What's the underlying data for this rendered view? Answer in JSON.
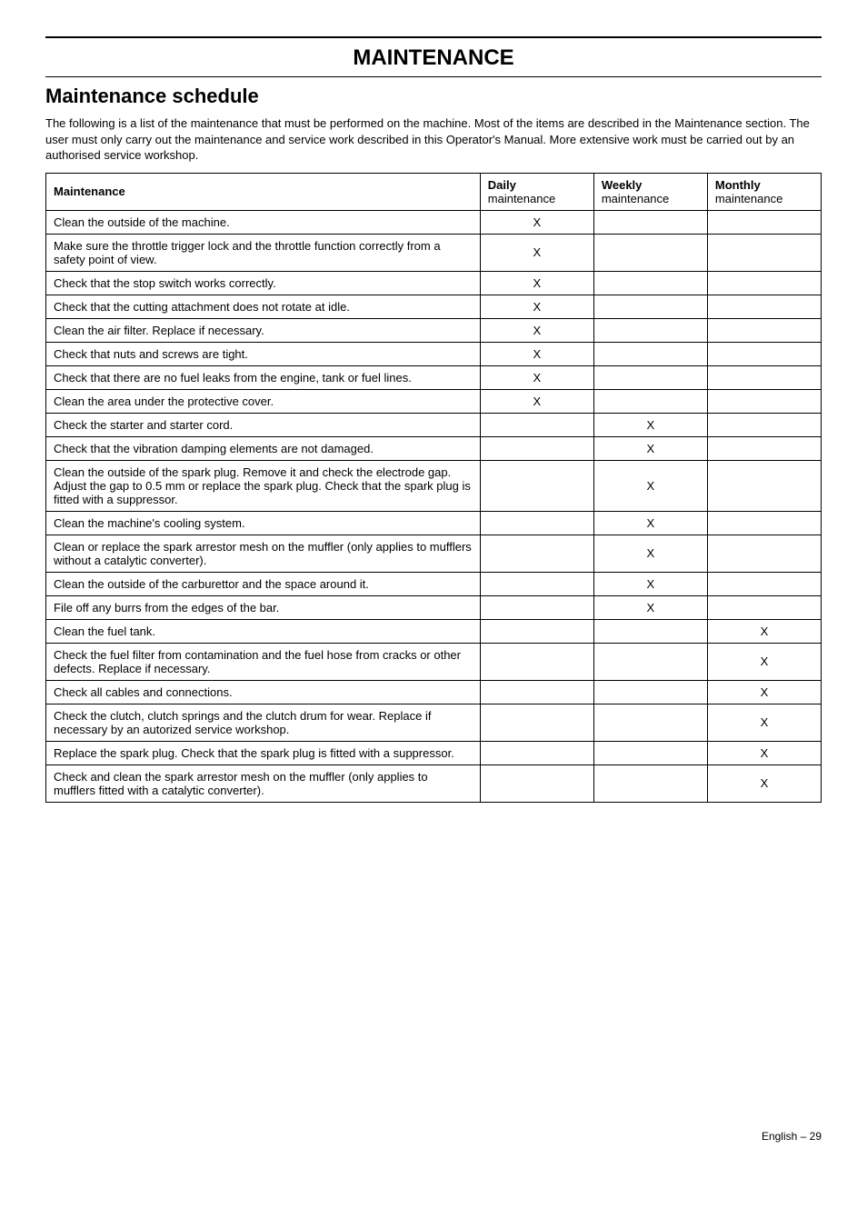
{
  "page": {
    "title": "MAINTENANCE",
    "section_title": "Maintenance schedule",
    "intro": "The following is a list of the maintenance that must be performed on the machine. Most of the items are described in the Maintenance section. The user must only carry out the maintenance and service work described in this Operator's Manual. More extensive work must be carried out by an authorised service workshop.",
    "footer": "English – 29"
  },
  "table": {
    "headers": {
      "task": "Maintenance",
      "daily_line1": "Daily",
      "daily_line2": "maintenance",
      "weekly_line1": "Weekly",
      "weekly_line2": "maintenance",
      "monthly_line1": "Monthly",
      "monthly_line2": "maintenance"
    },
    "mark": "X",
    "rows": [
      {
        "task": "Clean the outside of the machine.",
        "daily": true,
        "weekly": false,
        "monthly": false
      },
      {
        "task": "Make sure the throttle trigger lock and the throttle function correctly from a safety point of view.",
        "daily": true,
        "weekly": false,
        "monthly": false
      },
      {
        "task": "Check that the stop switch works correctly.",
        "daily": true,
        "weekly": false,
        "monthly": false
      },
      {
        "task": "Check that the cutting attachment does not rotate at idle.",
        "daily": true,
        "weekly": false,
        "monthly": false
      },
      {
        "task": "Clean the air filter. Replace if necessary.",
        "daily": true,
        "weekly": false,
        "monthly": false
      },
      {
        "task": "Check that nuts and screws are tight.",
        "daily": true,
        "weekly": false,
        "monthly": false
      },
      {
        "task": "Check that there are no fuel leaks from the engine, tank or fuel lines.",
        "daily": true,
        "weekly": false,
        "monthly": false
      },
      {
        "task": "Clean the area under the protective cover.",
        "daily": true,
        "weekly": false,
        "monthly": false
      },
      {
        "task": "Check the starter and starter cord.",
        "daily": false,
        "weekly": true,
        "monthly": false
      },
      {
        "task": "Check that the vibration damping elements are not damaged.",
        "daily": false,
        "weekly": true,
        "monthly": false
      },
      {
        "task": "Clean the outside of the spark plug. Remove it and check the electrode gap. Adjust the gap to 0.5 mm or replace the spark plug. Check that the spark plug is fitted with a suppressor.",
        "daily": false,
        "weekly": true,
        "monthly": false
      },
      {
        "task": "Clean the machine's cooling system.",
        "daily": false,
        "weekly": true,
        "monthly": false
      },
      {
        "task": "Clean or replace the spark arrestor mesh on the muffler (only applies to mufflers without a catalytic converter).",
        "daily": false,
        "weekly": true,
        "monthly": false
      },
      {
        "task": "Clean the outside of the carburettor and the space around it.",
        "daily": false,
        "weekly": true,
        "monthly": false
      },
      {
        "task": "File off any burrs from the edges of the bar.",
        "daily": false,
        "weekly": true,
        "monthly": false
      },
      {
        "task": "Clean the fuel tank.",
        "daily": false,
        "weekly": false,
        "monthly": true
      },
      {
        "task": "Check the fuel filter from contamination and the fuel hose from cracks or other defects. Replace if necessary.",
        "daily": false,
        "weekly": false,
        "monthly": true
      },
      {
        "task": "Check all cables and connections.",
        "daily": false,
        "weekly": false,
        "monthly": true
      },
      {
        "task": "Check the clutch, clutch springs and the clutch drum for wear. Replace if necessary by an autorized service workshop.",
        "daily": false,
        "weekly": false,
        "monthly": true
      },
      {
        "task": "Replace the spark plug. Check that the spark plug is fitted with a suppressor.",
        "daily": false,
        "weekly": false,
        "monthly": true
      },
      {
        "task": "Check and clean the spark arrestor mesh on the muffler (only applies to mufflers fitted with a catalytic converter).",
        "daily": false,
        "weekly": false,
        "monthly": true
      }
    ]
  }
}
